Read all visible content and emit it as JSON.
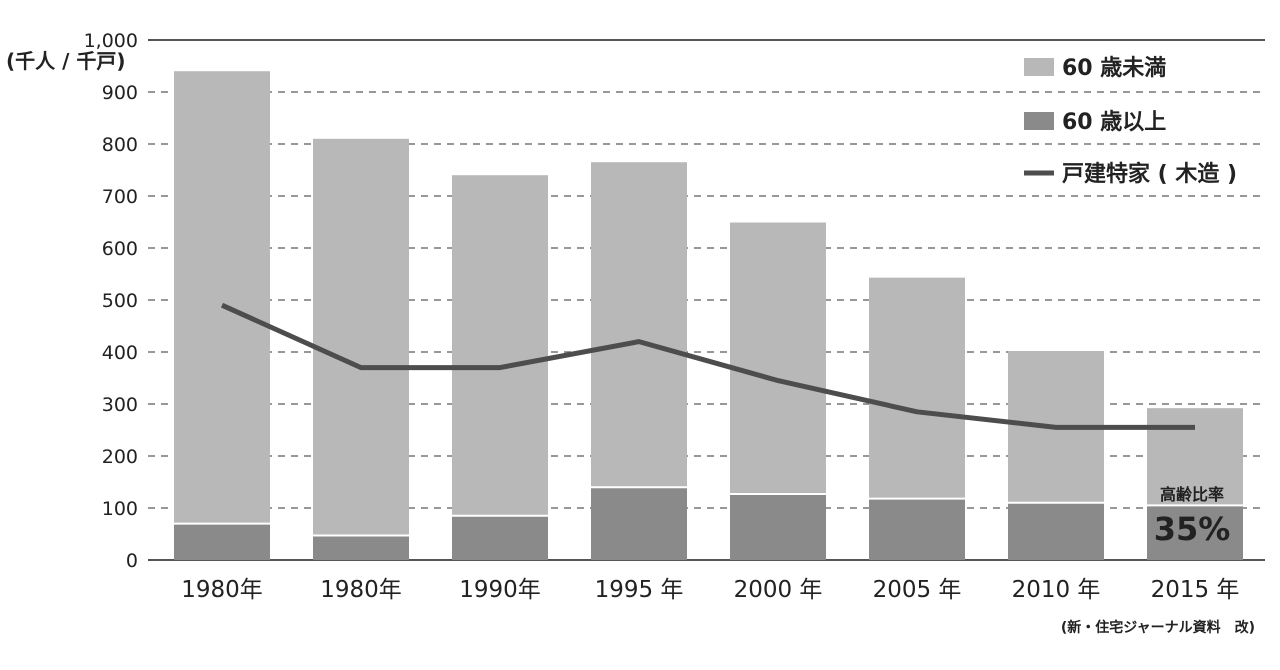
{
  "chart_data": {
    "type": "bar",
    "stacked": true,
    "unit_label": "(千人 / 千戸)",
    "categories": [
      "1980年",
      "1980年",
      "1990年",
      "1995 年",
      "2000 年",
      "2005 年",
      "2010 年",
      "2015 年"
    ],
    "series": [
      {
        "name": "60 歳以上",
        "type": "bar",
        "color": "#8a8a8a",
        "values": [
          70,
          47,
          85,
          140,
          127,
          118,
          110,
          105
        ]
      },
      {
        "name": "60 歳未満",
        "type": "bar",
        "color": "#b8b8b8",
        "values": [
          870,
          763,
          655,
          625,
          522,
          425,
          292,
          187
        ]
      },
      {
        "name": "戸建特家 ( 木造 )",
        "type": "line",
        "color": "#4d4d4d",
        "values": [
          490,
          370,
          370,
          420,
          345,
          285,
          255,
          255
        ]
      }
    ],
    "legend_order": [
      "60 歳未満",
      "60 歳以上",
      "戸建特家 ( 木造 )"
    ],
    "y_ticks": [
      "0",
      "100",
      "200",
      "300",
      "400",
      "500",
      "600",
      "700",
      "800",
      "900",
      "1,000"
    ],
    "ylim": [
      0,
      1000
    ],
    "grid": "dashed-horizontal",
    "legend_position": "top-right",
    "annotation": {
      "label": "高齢比率",
      "value": "35%"
    },
    "source_note": "(新・住宅ジャーナル資料　改)"
  }
}
